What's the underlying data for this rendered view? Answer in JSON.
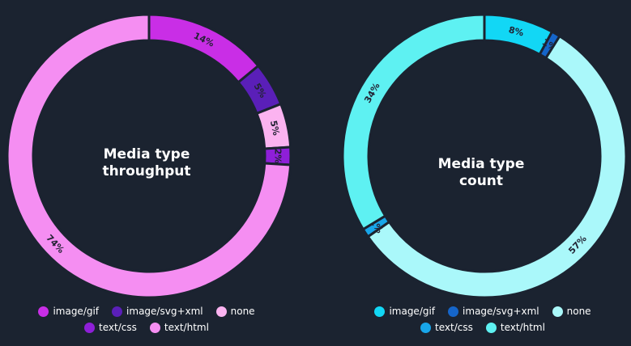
{
  "chart_data": [
    {
      "type": "pie",
      "title": "Media type throughput",
      "title_lines": [
        "Media type",
        "throughput"
      ],
      "categories": [
        "image/gif",
        "image/svg+xml",
        "none",
        "text/css",
        "text/html"
      ],
      "values": [
        14,
        5,
        5,
        2,
        74
      ],
      "labels": [
        "14%",
        "5%",
        "5%",
        "2%",
        "74%"
      ],
      "colors": [
        "#c92ee6",
        "#5a1fb8",
        "#fbb3f0",
        "#8e1fd8",
        "#f58ef2"
      ],
      "legend_position": "bottom"
    },
    {
      "type": "pie",
      "title": "Media type count",
      "title_lines": [
        "Media type count"
      ],
      "categories": [
        "image/gif",
        "image/svg+xml",
        "none",
        "text/css",
        "text/html"
      ],
      "values": [
        8,
        1,
        57,
        1,
        34
      ],
      "labels": [
        "8%",
        "1%",
        "57%",
        "1%",
        "34%"
      ],
      "colors": [
        "#12d7f5",
        "#1565c9",
        "#aaf8fa",
        "#18a6ea",
        "#5ef1f2"
      ],
      "legend_position": "bottom"
    }
  ]
}
